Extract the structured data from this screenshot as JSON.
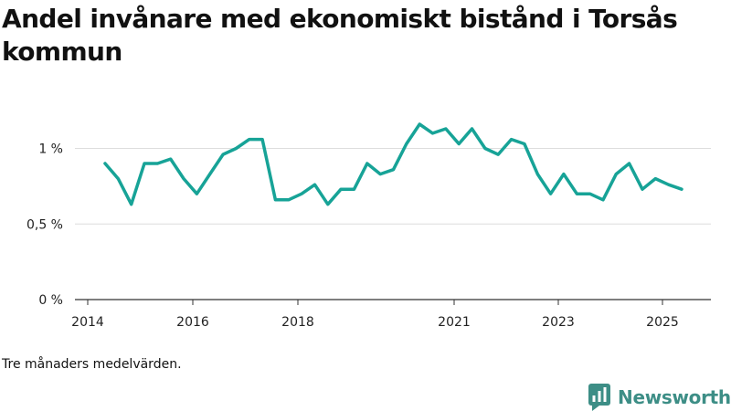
{
  "title": "Andel invånare med ekonomiskt bistånd i Torsås kommun",
  "note": "Tre månaders medelvärden.",
  "brand": "Newsworthy",
  "colors": {
    "line": "#17a397",
    "grid": "#dddddd",
    "axis": "#333333",
    "brand": "#3d8e86"
  },
  "chart_data": {
    "type": "line",
    "title": "Andel invånare med ekonomiskt bistånd i Torsås kommun",
    "xlabel": "",
    "ylabel": "",
    "ylim": [
      0,
      1.2
    ],
    "y_ticks": [
      0,
      0.5,
      1
    ],
    "y_tick_labels": [
      "0 %",
      "0,5 %",
      "1 %"
    ],
    "x_ticks": [
      "2014",
      "2016",
      "2018",
      "2021",
      "2023",
      "2025"
    ],
    "grid": "horizontal",
    "series": [
      {
        "values": [
          0.9,
          0.8,
          0.63,
          0.9,
          0.9,
          0.93,
          0.8,
          0.7,
          0.83,
          0.96,
          1.0,
          1.06,
          1.06,
          0.66,
          0.66,
          0.7,
          0.76,
          0.63,
          0.73,
          0.73,
          0.9,
          0.83,
          0.86,
          1.03,
          1.16,
          1.1,
          1.13,
          1.03,
          1.13,
          1.0,
          0.96,
          1.06,
          1.03,
          0.83,
          0.7,
          0.83,
          0.7,
          0.7,
          0.66,
          0.83,
          0.9,
          0.73,
          0.8,
          0.76,
          0.73
        ]
      }
    ]
  }
}
